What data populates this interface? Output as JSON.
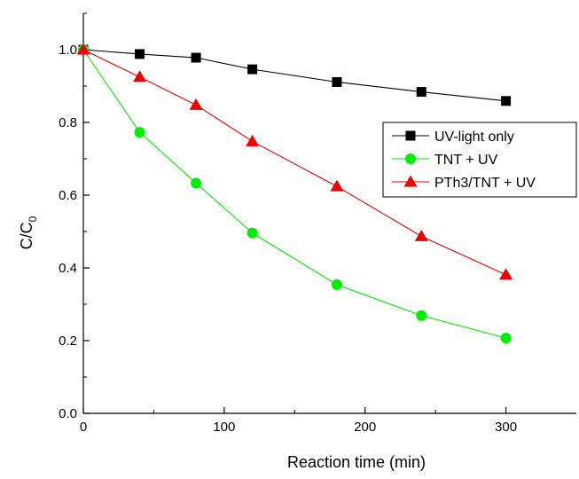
{
  "chart_data": {
    "type": "line",
    "title": "",
    "xlabel": "Reaction time (min)",
    "ylabel_main": "C/C",
    "ylabel_sub": "0",
    "xlim": [
      0,
      350
    ],
    "ylim": [
      0.0,
      1.1
    ],
    "xticks": [
      "0",
      "100",
      "200",
      "300"
    ],
    "yticks": [
      "0.0",
      "0.2",
      "0.4",
      "0.6",
      "0.8",
      "1.0"
    ],
    "grid": false,
    "legend_position": "right",
    "series": [
      {
        "name": "UV-light only",
        "marker": "square",
        "color": "#000000",
        "marker_color": "#000000",
        "x": [
          0,
          40,
          80,
          120,
          180,
          240,
          300
        ],
        "y": [
          1.0,
          0.988,
          0.978,
          0.946,
          0.911,
          0.884,
          0.859
        ]
      },
      {
        "name": "TNT + UV",
        "marker": "circle",
        "color": "#00ee00",
        "marker_color": "#00ee00",
        "x": [
          0,
          40,
          80,
          120,
          180,
          240,
          300
        ],
        "y": [
          1.0,
          0.773,
          0.633,
          0.496,
          0.354,
          0.269,
          0.207
        ]
      },
      {
        "name": "PTh3/TNT + UV",
        "marker": "triangle",
        "color": "#ee0000",
        "marker_color": "#ee0000",
        "x": [
          0,
          40,
          80,
          120,
          180,
          240,
          300
        ],
        "y": [
          1.0,
          0.925,
          0.848,
          0.748,
          0.624,
          0.487,
          0.381
        ]
      }
    ]
  }
}
